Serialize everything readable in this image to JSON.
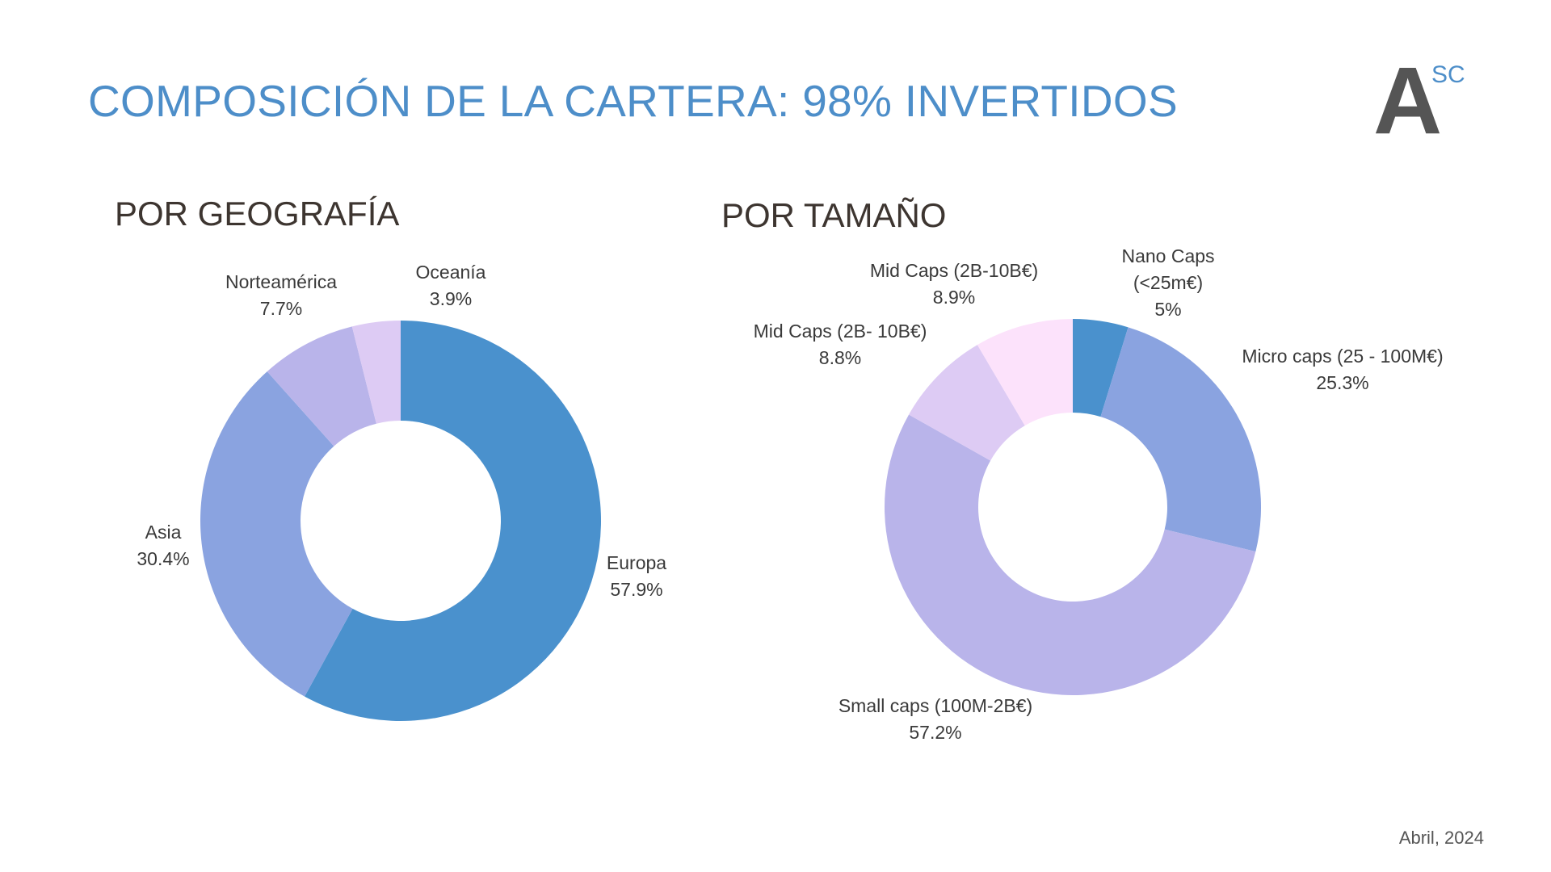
{
  "slide": {
    "title": "COMPOSICIÓN DE LA CARTERA: 98% INVERTIDOS",
    "footer_date": "Abril, 2024"
  },
  "logo": {
    "letter": "A",
    "superscript": "SC"
  },
  "chart_data": [
    {
      "type": "pie",
      "donut": true,
      "title": "POR GEOGRAFÍA",
      "slices": [
        {
          "name": "Europa",
          "value": 57.9,
          "label_lines": [
            "Europa",
            "57.9%"
          ],
          "color": "#4a91cd"
        },
        {
          "name": "Asia",
          "value": 30.4,
          "label_lines": [
            "Asia",
            "30.4%"
          ],
          "color": "#8aa3e0"
        },
        {
          "name": "Norteamérica",
          "value": 7.7,
          "label_lines": [
            "Norteamérica",
            "7.7%"
          ],
          "color": "#b9b4ea"
        },
        {
          "name": "Oceanía",
          "value": 3.9,
          "label_lines": [
            "Oceanía",
            "3.9%"
          ],
          "color": "#ddcbf4"
        }
      ]
    },
    {
      "type": "pie",
      "donut": true,
      "title": "POR TAMAÑO",
      "slices": [
        {
          "name": "Nano Caps (<25m€)",
          "value": 5,
          "label_lines": [
            "Nano Caps",
            "(<25m€)",
            "5%"
          ],
          "color": "#4a91cd"
        },
        {
          "name": "Micro caps (25 - 100M€)",
          "value": 25.3,
          "label_lines": [
            "Micro caps (25 - 100M€)",
            "25.3%"
          ],
          "color": "#8aa3e0"
        },
        {
          "name": "Small caps (100M-2B€)",
          "value": 57.2,
          "label_lines": [
            "Small caps (100M-2B€)",
            "57.2%"
          ],
          "color": "#b9b4ea"
        },
        {
          "name": "Mid Caps (2B- 10B€)",
          "value": 8.8,
          "label_lines": [
            "Mid Caps (2B- 10B€)",
            "8.8%"
          ],
          "color": "#ddcbf4"
        },
        {
          "name": "Mid Caps (2B-10B€)",
          "value": 8.9,
          "label_lines": [
            "Mid Caps (2B-10B€)",
            "8.9%"
          ],
          "color": "#fce2fb"
        }
      ]
    }
  ]
}
